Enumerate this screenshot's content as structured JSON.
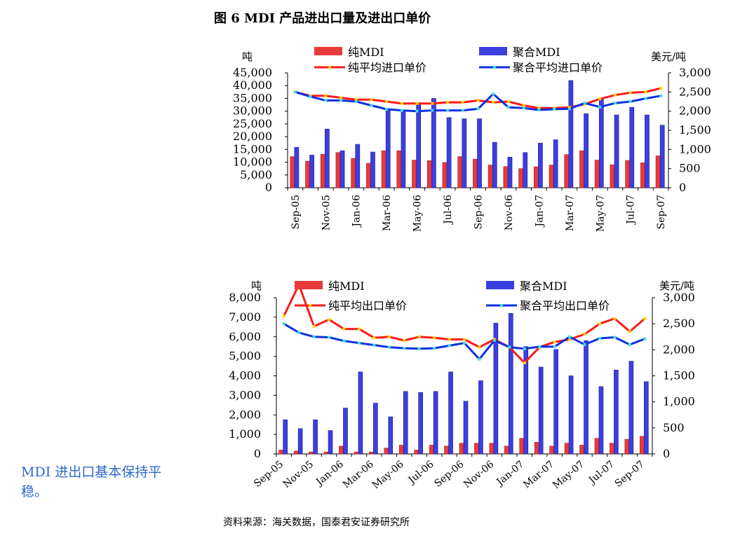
{
  "figure_title": "图 6  MDI 产品进出口量及进出口单价",
  "side_note": "MDI 进出口基本保持平稳。",
  "source": "资料来源：海关数据，国泰君安证券研究所",
  "colors": {
    "pure": "#e83a3a",
    "poly": "#3b3fe0",
    "pure_line": "#ff1a1a",
    "poly_line": "#1030e0",
    "marker": "#ffd400",
    "marker2": "#40e0e0"
  },
  "chart_data": [
    {
      "type": "bar",
      "name": "import",
      "left_unit": "吨",
      "right_unit": "美元/吨",
      "categories": [
        "Sep-05",
        "Oct-05",
        "Nov-05",
        "Dec-05",
        "Jan-06",
        "Feb-06",
        "Mar-06",
        "Apr-06",
        "May-06",
        "Jun-06",
        "Jul-06",
        "Aug-06",
        "Sep-06",
        "Oct-06",
        "Nov-06",
        "Dec-06",
        "Jan-07",
        "Feb-07",
        "Mar-07",
        "Apr-07",
        "May-07",
        "Jun-07",
        "Jul-07",
        "Aug-07",
        "Sep-07"
      ],
      "tick_labels": [
        "Sep-05",
        "Nov-05",
        "Jan-06",
        "Mar-06",
        "May-06",
        "Jul-06",
        "Sep-06",
        "Nov-06",
        "Jan-07",
        "Mar-07",
        "May-07",
        "Jul-07",
        "Sep-07"
      ],
      "ylim_left": [
        0,
        45000
      ],
      "yticks_left": [
        "0",
        "5,000",
        "10,000",
        "15,000",
        "20,000",
        "25,000",
        "30,000",
        "35,000",
        "40,000",
        "45,000"
      ],
      "ylim_right": [
        0,
        3000
      ],
      "yticks_right": [
        "0",
        "500",
        "1,000",
        "1,500",
        "2,000",
        "2,500",
        "3,000"
      ],
      "series": [
        {
          "name": "纯MDI",
          "kind": "bar",
          "axis": "left",
          "values": [
            12200,
            10400,
            13100,
            13800,
            11500,
            9600,
            14500,
            14500,
            10800,
            10600,
            9900,
            12200,
            11200,
            8900,
            8300,
            7500,
            8200,
            8900,
            13000,
            14500,
            10800,
            9000,
            10700,
            9800,
            12500
          ]
        },
        {
          "name": "聚合MDI",
          "kind": "bar",
          "axis": "left",
          "values": [
            15800,
            12800,
            23000,
            14500,
            17000,
            14000,
            30500,
            30500,
            32500,
            35000,
            27500,
            27000,
            27000,
            17800,
            12000,
            13800,
            17500,
            18800,
            42000,
            29000,
            35000,
            28500,
            31500,
            28500,
            24500
          ]
        },
        {
          "name": "纯平均进口单价",
          "kind": "line",
          "axis": "right",
          "values": [
            2500,
            2400,
            2400,
            2350,
            2300,
            2300,
            2250,
            2200,
            2200,
            2200,
            2230,
            2230,
            2280,
            2230,
            2250,
            2150,
            2080,
            2080,
            2100,
            2180,
            2320,
            2420,
            2480,
            2500,
            2600
          ]
        },
        {
          "name": "聚合平均进口单价",
          "kind": "line",
          "axis": "right",
          "values": [
            2500,
            2380,
            2280,
            2280,
            2250,
            2150,
            2050,
            2020,
            2000,
            2020,
            2020,
            2020,
            2060,
            2450,
            2100,
            2080,
            2030,
            2050,
            2060,
            2210,
            2110,
            2210,
            2250,
            2330,
            2400
          ]
        }
      ]
    },
    {
      "type": "bar",
      "name": "export",
      "left_unit": "吨",
      "right_unit": "美元/吨",
      "categories": [
        "Sep-05",
        "Oct-05",
        "Nov-05",
        "Dec-05",
        "Jan-06",
        "Feb-06",
        "Mar-06",
        "Apr-06",
        "May-06",
        "Jun-06",
        "Jul-06",
        "Aug-06",
        "Sep-06",
        "Oct-06",
        "Nov-06",
        "Dec-06",
        "Jan-07",
        "Feb-07",
        "Mar-07",
        "Apr-07",
        "May-07",
        "Jun-07",
        "Jul-07",
        "Aug-07",
        "Sep-07"
      ],
      "tick_labels": [
        "Sep-05",
        "Nov-05",
        "Jan-06",
        "Mar-06",
        "May-06",
        "Jul-06",
        "Sep-06",
        "Nov-06",
        "Jan-07",
        "Mar-07",
        "May-07",
        "Jul-07",
        "Sep-07"
      ],
      "ylim_left": [
        0,
        8000
      ],
      "yticks_left": [
        "0",
        "1,000",
        "2,000",
        "3,000",
        "4,000",
        "5,000",
        "6,000",
        "7,000",
        "8,000"
      ],
      "ylim_right": [
        0,
        3000
      ],
      "yticks_right": [
        "0",
        "500",
        "1,000",
        "1,500",
        "2,000",
        "2,500",
        "3,000"
      ],
      "series": [
        {
          "name": "纯MDI",
          "kind": "bar",
          "axis": "left",
          "values": [
            200,
            150,
            100,
            100,
            400,
            100,
            100,
            300,
            450,
            200,
            450,
            400,
            550,
            550,
            550,
            400,
            800,
            600,
            400,
            550,
            450,
            800,
            550,
            750,
            900
          ]
        },
        {
          "name": "聚合MDI",
          "kind": "bar",
          "axis": "left",
          "values": [
            1750,
            1300,
            1750,
            1200,
            2350,
            4200,
            2600,
            1900,
            3200,
            3150,
            3200,
            4200,
            2700,
            3750,
            6700,
            7200,
            5500,
            4450,
            5350,
            4000,
            5800,
            3450,
            4300,
            4750,
            3700
          ]
        },
        {
          "name": "纯平均出口单价",
          "kind": "line",
          "axis": "right",
          "values": [
            2650,
            3250,
            2450,
            2580,
            2400,
            2400,
            2230,
            2250,
            2180,
            2250,
            2230,
            2200,
            2200,
            2050,
            2200,
            2050,
            1750,
            2050,
            2150,
            2200,
            2300,
            2500,
            2600,
            2350,
            2600
          ]
        },
        {
          "name": "聚合平均出口单价",
          "kind": "line",
          "axis": "right",
          "values": [
            2500,
            2330,
            2250,
            2240,
            2170,
            2130,
            2090,
            2050,
            2030,
            2020,
            2030,
            2080,
            2130,
            1820,
            2180,
            2050,
            2020,
            2060,
            2060,
            2250,
            2100,
            2220,
            2240,
            2100,
            2210
          ]
        }
      ]
    }
  ]
}
